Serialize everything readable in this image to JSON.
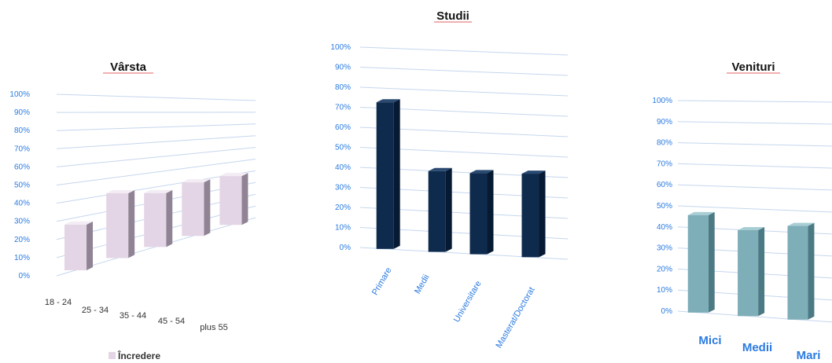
{
  "colors": {
    "grid": "#c5d6ee",
    "varsta_front": "#e3d5e5",
    "varsta_side": "#8f8394",
    "varsta_top": "#f3ecf4",
    "studii_front": "#0e2a4c",
    "studii_side": "#061a33",
    "studii_top": "#2a4a72",
    "venituri_front": "#7eaeb8",
    "venituri_side": "#4c7a84",
    "venituri_top": "#a8cdd4",
    "blue_text": "#2b7be0",
    "dark_text": "#333333"
  },
  "chart_data": [
    {
      "type": "bar",
      "title": "Vârsta",
      "categories": [
        "18 - 24",
        "25 - 34",
        "35 - 44",
        "45 - 54",
        "plus 55"
      ],
      "series": [
        {
          "name": "Încredere",
          "values": [
            26,
            40,
            36,
            39,
            39
          ]
        }
      ],
      "ylim": [
        0,
        100
      ],
      "yticks": [
        "0%",
        "10%",
        "20%",
        "30%",
        "40%",
        "50%",
        "60%",
        "70%",
        "80%",
        "90%",
        "100%"
      ],
      "grid": true,
      "legend": "bottom-left"
    },
    {
      "type": "bar",
      "title": "Studii",
      "categories": [
        "Primare",
        "Medii",
        "Universitare",
        "Masterat/Doctorat"
      ],
      "series": [
        {
          "values": [
            73,
            40,
            40,
            41
          ]
        }
      ],
      "ylim": [
        0,
        100
      ],
      "yticks": [
        "0%",
        "10%",
        "20%",
        "30%",
        "40%",
        "50%",
        "60%",
        "70%",
        "80%",
        "90%",
        "100%"
      ],
      "grid": true
    },
    {
      "type": "bar",
      "title": "Venituri",
      "categories": [
        "Mici",
        "Medii",
        "Mari"
      ],
      "series": [
        {
          "values": [
            46,
            40,
            43
          ]
        }
      ],
      "ylim": [
        0,
        100
      ],
      "yticks": [
        "0%",
        "10%",
        "20%",
        "30%",
        "40%",
        "50%",
        "60%",
        "70%",
        "80%",
        "90%",
        "100%"
      ],
      "grid": true
    }
  ]
}
